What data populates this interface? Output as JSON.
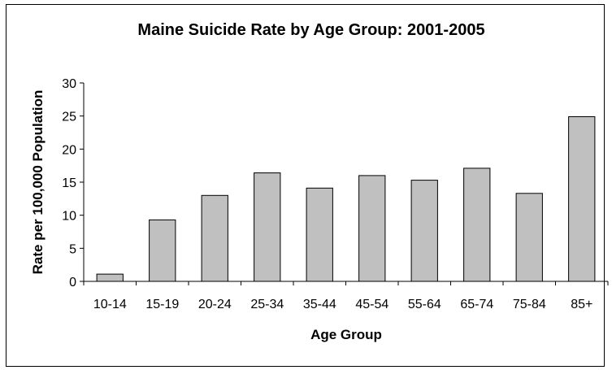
{
  "chart_data": {
    "type": "bar",
    "title": "Maine Suicide Rate by Age Group: 2001-2005",
    "xlabel": "Age Group",
    "ylabel": "Rate per 100,000 Population",
    "categories": [
      "10-14",
      "15-19",
      "20-24",
      "25-34",
      "35-44",
      "45-54",
      "55-64",
      "65-74",
      "75-84",
      "85+"
    ],
    "values": [
      1.1,
      9.3,
      13.0,
      16.4,
      14.1,
      16.0,
      15.3,
      17.1,
      13.3,
      24.9
    ],
    "ylim": [
      0,
      30
    ],
    "yticks": [
      0,
      5,
      10,
      15,
      20,
      25,
      30
    ],
    "grid": false,
    "legend": "none",
    "colors": {
      "bar_fill": "#c0c0c0",
      "bar_stroke": "#000000",
      "axis": "#000000"
    }
  }
}
